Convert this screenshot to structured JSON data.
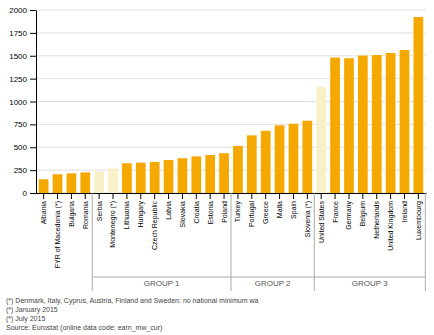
{
  "chart_data": {
    "type": "bar",
    "categories": [
      "Albania",
      "FYR of Macedonia (*)",
      "Bulgaria",
      "Romania",
      "Serbia",
      "Montenegro (*)",
      "Lithuania",
      "Hungary",
      "Czech Republic",
      "Latvia",
      "Slovakia",
      "Croatia",
      "Estonia",
      "Poland",
      "Turkey",
      "Portugal",
      "Greece",
      "Malta",
      "Spain",
      "Slovenia (*)",
      "United States",
      "France",
      "Germany",
      "Belgium",
      "Netherlands",
      "United Kingdom",
      "Ireland",
      "Luxembourg"
    ],
    "values": [
      150,
      205,
      215,
      225,
      235,
      270,
      325,
      332,
      340,
      360,
      380,
      400,
      415,
      435,
      515,
      630,
      680,
      740,
      757,
      790,
      1160,
      1480,
      1473,
      1502,
      1508,
      1530,
      1563,
      1923
    ],
    "colors": [
      "#F5A800",
      "#F5A800",
      "#F5A800",
      "#F5A800",
      "#FAF0C8",
      "#FAF0C8",
      "#F5A800",
      "#F5A800",
      "#F5A800",
      "#F5A800",
      "#F5A800",
      "#F5A800",
      "#F5A800",
      "#F5A800",
      "#F5A800",
      "#F5A800",
      "#F5A800",
      "#F5A800",
      "#F5A800",
      "#F5A800",
      "#FAF0C8",
      "#F5A800",
      "#F5A800",
      "#F5A800",
      "#F5A800",
      "#F5A800",
      "#F5A800",
      "#F5A800"
    ],
    "ylim": [
      0,
      2000
    ],
    "yticks": [
      0,
      250,
      500,
      750,
      1000,
      1250,
      1500,
      1750,
      2000
    ],
    "grid": true,
    "annotations": [
      {
        "text": "GROUP 1",
        "from": "Serbia",
        "to": "Poland"
      },
      {
        "text": "GROUP 2",
        "from": "Turkey",
        "to": "Slovenia (*)"
      },
      {
        "text": "GROUP 3",
        "from": "United States",
        "to": "Luxembourg"
      },
      {
        "text": "(*) Denmark, Italy, Cyprus, Austria, Finland and Sweden: no national minimum wa"
      },
      {
        "text": "(*) January 2015"
      },
      {
        "text": "(*) July 2015"
      },
      {
        "text": "Source: Eurostat (online data code: earn_mw_cur)"
      }
    ]
  }
}
